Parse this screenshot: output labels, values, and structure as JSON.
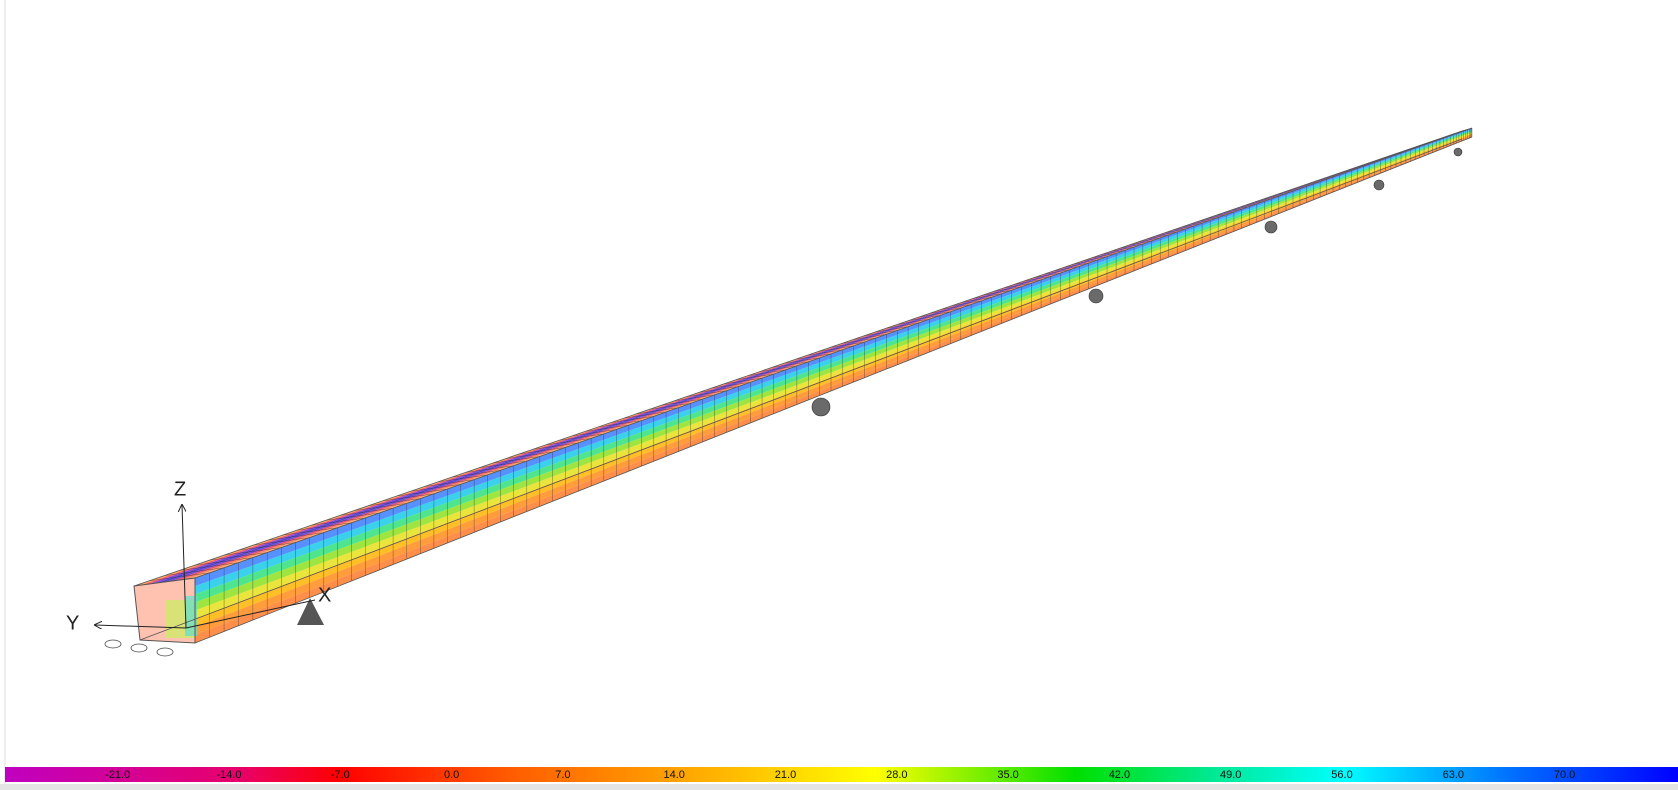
{
  "axes": {
    "z": "Z",
    "y": "Y",
    "x": "X"
  },
  "legend": {
    "labels": [
      "-21.0",
      "-14.0",
      "-7.0",
      "0.0",
      "7.0",
      "14.0",
      "21.0",
      "28.0",
      "35.0",
      "42.0",
      "49.0",
      "56.0",
      "63.0",
      "70.0"
    ]
  }
}
